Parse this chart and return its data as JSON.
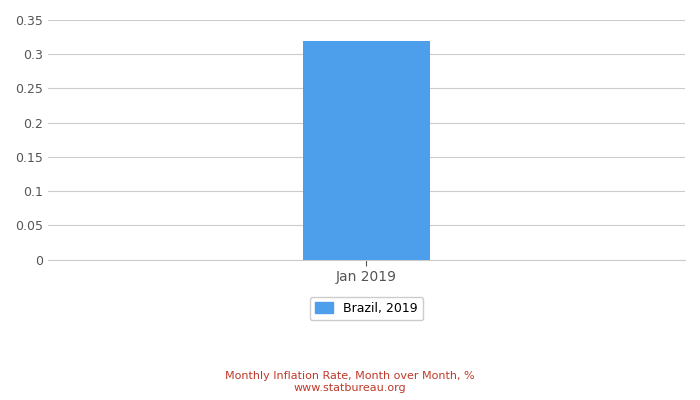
{
  "categories": [
    "Jan 2019"
  ],
  "x_positions": [
    2
  ],
  "values": [
    0.32
  ],
  "bar_color": "#4d9fec",
  "bar_width": 0.8,
  "xlim": [
    0,
    4
  ],
  "ylim": [
    0,
    0.35
  ],
  "yticks": [
    0,
    0.05,
    0.1,
    0.15,
    0.2,
    0.25,
    0.3,
    0.35
  ],
  "legend_label": "Brazil, 2019",
  "footnote_line1": "Monthly Inflation Rate, Month over Month, %",
  "footnote_line2": "www.statbureau.org",
  "footnote_color": "#c0392b",
  "background_color": "#ffffff",
  "grid_color": "#cccccc",
  "tick_label_color": "#555555",
  "axis_label_fontsize": 9,
  "xtick_fontsize": 10,
  "legend_fontsize": 9
}
